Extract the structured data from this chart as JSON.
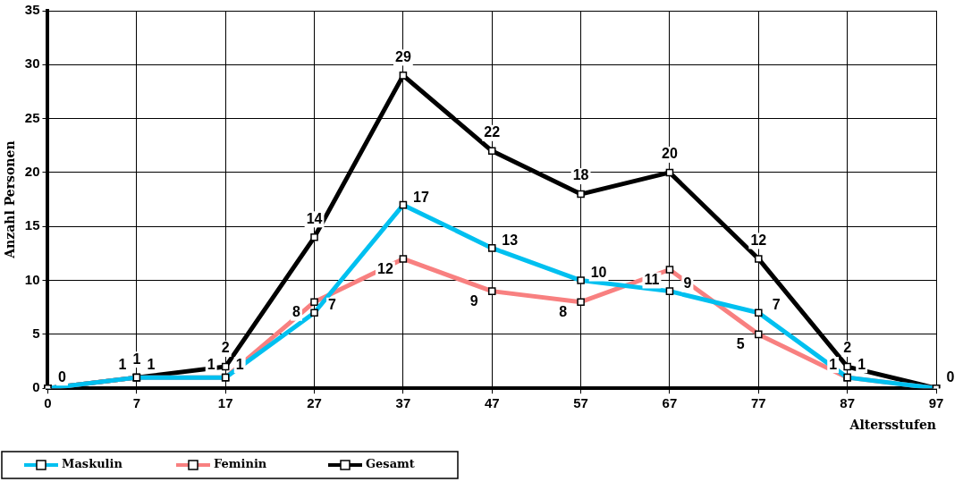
{
  "chart_data": {
    "type": "line",
    "xlabel": "Altersstufen",
    "ylabel": "Anzahl Personen",
    "categories": [
      "0",
      "7",
      "17",
      "27",
      "37",
      "47",
      "57",
      "67",
      "77",
      "87",
      "97"
    ],
    "series": [
      {
        "name": "Maskulin",
        "color": "#00c0f0",
        "values": [
          0,
          1,
          1,
          7,
          17,
          13,
          10,
          9,
          7,
          1,
          0
        ],
        "value_labels": [
          null,
          "1",
          "1",
          "7",
          "17",
          "13",
          "10",
          "9",
          "7",
          "1",
          null
        ]
      },
      {
        "name": "Feminin",
        "color": "#f88080",
        "values": [
          0,
          1,
          1,
          8,
          12,
          9,
          8,
          11,
          5,
          1,
          0
        ],
        "value_labels": [
          null,
          "1",
          "1",
          "8",
          "12",
          "9",
          "8",
          "11",
          "5",
          "1",
          null
        ]
      },
      {
        "name": "Gesamt",
        "color": "#000000",
        "values": [
          0,
          1,
          2,
          14,
          29,
          22,
          18,
          20,
          12,
          2,
          0
        ],
        "value_labels": [
          "0",
          "1",
          "2",
          "14",
          "29",
          "22",
          "18",
          "20",
          "12",
          "2",
          "0"
        ]
      }
    ],
    "ylim": [
      0,
      35
    ],
    "yticks": [
      0,
      5,
      10,
      15,
      20,
      25,
      30,
      35
    ],
    "grid": true,
    "legend": "bottom left",
    "marker": "square",
    "line_style": "solid"
  }
}
